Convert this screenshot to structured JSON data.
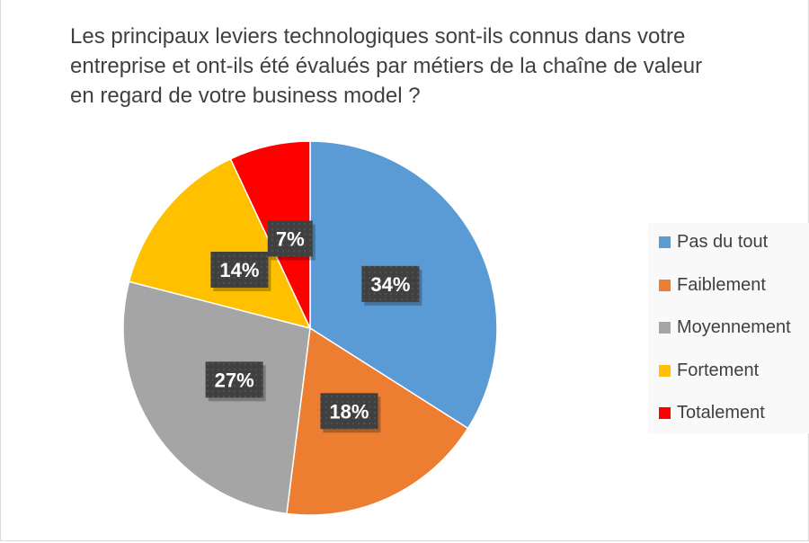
{
  "chart_data": {
    "type": "pie",
    "title": "Les principaux leviers technologiques sont-ils connus dans votre entreprise et ont-ils été évalués par métiers de la chaîne de valeur en regard de votre business model ?",
    "title_lines": [
      "Les principaux leviers technologiques sont-ils connus dans votre",
      "entreprise et ont-ils été évalués par métiers de la chaîne de valeur",
      "en regard de votre business model ?"
    ],
    "categories": [
      "Pas du tout",
      "Faiblement",
      "Moyennement",
      "Fortement",
      "Totalement"
    ],
    "values": [
      34,
      18,
      27,
      14,
      7
    ],
    "data_labels": [
      "34%",
      "18%",
      "27%",
      "14%",
      "7%"
    ],
    "colors": [
      "#5b9bd5",
      "#ed7d31",
      "#a5a5a5",
      "#ffc000",
      "#ff0000"
    ],
    "start_angle": "12 o'clock, clockwise",
    "legend_position": "right"
  }
}
